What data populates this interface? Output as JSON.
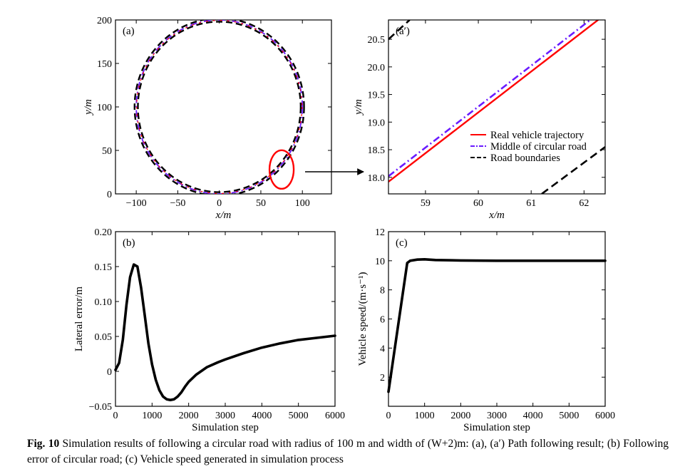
{
  "chart_data": [
    {
      "id": "a",
      "type": "line",
      "panel_label": "(a)",
      "xlabel": "x/m",
      "ylabel": "y/m",
      "xlim": [
        -125,
        135
      ],
      "ylim": [
        0,
        200
      ],
      "xticks": [
        -100,
        -50,
        0,
        50,
        100
      ],
      "xtick_labels": [
        "−100",
        "−50",
        "0",
        "50",
        "100"
      ],
      "yticks": [
        0,
        50,
        100,
        150,
        200
      ],
      "ytick_labels": [
        "0",
        "50",
        "100",
        "150",
        "200"
      ],
      "circle": {
        "cx": 0,
        "cy": 100,
        "r": 100,
        "road_width_m": 4
      },
      "series": [
        {
          "name": "Real vehicle trajectory",
          "color": "#ff0000",
          "style": "solid"
        },
        {
          "name": "Middle of circular road",
          "color": "#6a1bff",
          "style": "dash-dot"
        },
        {
          "name": "Road boundaries",
          "color": "#000000",
          "style": "dashed"
        }
      ],
      "highlight_ellipse": {
        "center": [
          75,
          28
        ],
        "color": "#ff0000"
      }
    },
    {
      "id": "a_prime",
      "type": "line",
      "panel_label": "(a′)",
      "xlabel": "x/m",
      "ylabel": "y/m",
      "xlim": [
        58.3,
        62.4
      ],
      "ylim": [
        17.7,
        20.85
      ],
      "xticks": [
        59,
        60,
        61,
        62
      ],
      "xtick_labels": [
        "59",
        "60",
        "61",
        "62"
      ],
      "yticks": [
        18.0,
        18.5,
        19.0,
        19.5,
        20.0,
        20.5
      ],
      "ytick_labels": [
        "18.0",
        "18.5",
        "19.0",
        "19.5",
        "20.0",
        "20.5"
      ],
      "legend_position": "right",
      "series": [
        {
          "name": "Real vehicle trajectory",
          "color": "#ff0000",
          "style": "solid",
          "points": [
            [
              58.3,
              17.92
            ],
            [
              62.4,
              20.95
            ]
          ]
        },
        {
          "name": "Middle of circular road",
          "color": "#6a1bff",
          "style": "dash-dot",
          "points": [
            [
              58.3,
              18.02
            ],
            [
              62.4,
              21.06
            ]
          ]
        },
        {
          "name": "Road boundaries",
          "color": "#000000",
          "style": "dashed",
          "segments": [
            [
              [
                58.3,
                20.5
              ],
              [
                58.7,
                20.85
              ]
            ],
            [
              [
                61.2,
                17.7
              ],
              [
                62.4,
                18.55
              ]
            ]
          ]
        }
      ]
    },
    {
      "id": "b",
      "type": "line",
      "panel_label": "(b)",
      "xlabel": "Simulation step",
      "ylabel": "Lateral error/m",
      "xlim": [
        0,
        6000
      ],
      "ylim": [
        -0.05,
        0.2
      ],
      "xticks": [
        0,
        1000,
        2000,
        3000,
        4000,
        5000,
        6000
      ],
      "xtick_labels": [
        "0",
        "1000",
        "2000",
        "3000",
        "4000",
        "5000",
        "6000"
      ],
      "yticks": [
        -0.05,
        0,
        0.05,
        0.1,
        0.15,
        0.2
      ],
      "ytick_labels": [
        "−0.05",
        "0",
        "0.05",
        "0.10",
        "0.15",
        "0.20"
      ],
      "series": [
        {
          "color": "#000000",
          "x": [
            0,
            100,
            200,
            300,
            400,
            500,
            600,
            700,
            800,
            900,
            1000,
            1100,
            1200,
            1300,
            1400,
            1500,
            1600,
            1700,
            1800,
            1900,
            2000,
            2200,
            2500,
            2800,
            3000,
            3500,
            4000,
            4500,
            5000,
            5500,
            6000
          ],
          "y": [
            0.002,
            0.012,
            0.045,
            0.095,
            0.135,
            0.153,
            0.15,
            0.12,
            0.08,
            0.04,
            0.01,
            -0.012,
            -0.027,
            -0.036,
            -0.04,
            -0.041,
            -0.04,
            -0.036,
            -0.03,
            -0.022,
            -0.015,
            -0.005,
            0.006,
            0.013,
            0.017,
            0.026,
            0.034,
            0.04,
            0.045,
            0.048,
            0.051
          ]
        }
      ]
    },
    {
      "id": "c",
      "type": "line",
      "panel_label": "(c)",
      "xlabel": "Simulation step",
      "ylabel": "Vehicle speed/(m·s⁻¹)",
      "xlim": [
        0,
        6000
      ],
      "ylim": [
        0,
        12
      ],
      "xticks": [
        0,
        1000,
        2000,
        3000,
        4000,
        5000,
        6000
      ],
      "xtick_labels": [
        "0",
        "1000",
        "2000",
        "3000",
        "4000",
        "5000",
        "6000"
      ],
      "yticks": [
        2,
        4,
        6,
        8,
        10,
        12
      ],
      "ytick_labels": [
        "2",
        "4",
        "6",
        "8",
        "10",
        "12"
      ],
      "series": [
        {
          "color": "#000000",
          "x": [
            0,
            520,
            600,
            800,
            1000,
            1300,
            2000,
            3000,
            4000,
            5000,
            6000
          ],
          "y": [
            1.0,
            9.85,
            10.0,
            10.08,
            10.1,
            10.05,
            10.02,
            10.0,
            10.0,
            10.0,
            10.0
          ]
        }
      ]
    }
  ],
  "caption": {
    "fig_label": "Fig. 10",
    "text": " Simulation results of following a circular road with radius of 100 m and width of (W+2)m: (a), (a′) Path following result; (b) Following error of circular road; (c) Vehicle speed generated in simulation process"
  }
}
